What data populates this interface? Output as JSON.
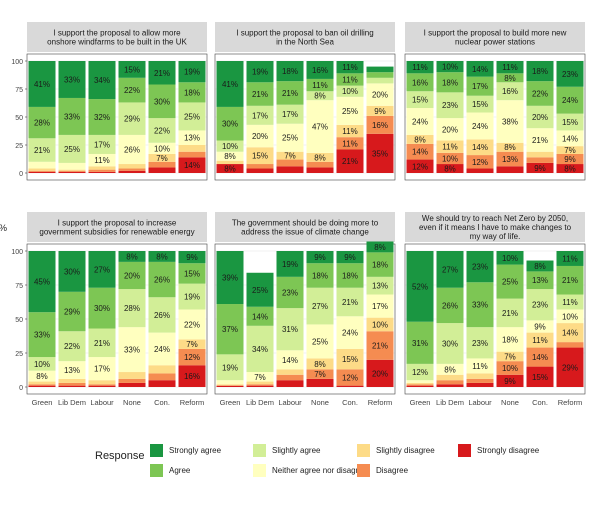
{
  "chart_data": {
    "type": "bar",
    "stacked": true,
    "ylabel": "%",
    "y_ticks": [
      0,
      25,
      50,
      75,
      100
    ],
    "ylim": [
      0,
      100
    ],
    "categories": [
      "Green",
      "Lib Dem",
      "Labour",
      "None",
      "Con.",
      "Reform"
    ],
    "legend_title": "Response",
    "legend_position": "bottom",
    "responses": [
      {
        "name": "Strongly agree",
        "color": "#1a9641"
      },
      {
        "name": "Agree",
        "color": "#7dc654"
      },
      {
        "name": "Slightly agree",
        "color": "#d2ee97"
      },
      {
        "name": "Neither agree nor disagree",
        "color": "#ffffbf"
      },
      {
        "name": "Slightly disagree",
        "color": "#fddb87"
      },
      {
        "name": "Disagree",
        "color": "#f58c51"
      },
      {
        "name": "Strongly disagree",
        "color": "#d7191c"
      }
    ],
    "panels": [
      {
        "title": "I support the proposal to allow more onshore windfarms to be built in the UK",
        "bars": [
          [
            41,
            28,
            21,
            6,
            2,
            1,
            1
          ],
          [
            33,
            33,
            25,
            6,
            1,
            1,
            1
          ],
          [
            34,
            32,
            17,
            11,
            3,
            2,
            1
          ],
          [
            15,
            22,
            29,
            26,
            4,
            2,
            2
          ],
          [
            21,
            30,
            22,
            10,
            7,
            5,
            5
          ],
          [
            19,
            18,
            25,
            13,
            6,
            5,
            14
          ]
        ]
      },
      {
        "title": "I support the proposal to ban oil drilling in the North Sea",
        "bars": [
          [
            41,
            30,
            10,
            8,
            3,
            0,
            8
          ],
          [
            19,
            21,
            17,
            20,
            15,
            4,
            4
          ],
          [
            18,
            21,
            17,
            25,
            7,
            6,
            6
          ],
          [
            16,
            11,
            8,
            47,
            8,
            5,
            5
          ],
          [
            11,
            11,
            10,
            25,
            11,
            11,
            21
          ],
          [
            5,
            5,
            5,
            20,
            9,
            16,
            35
          ]
        ]
      },
      {
        "title": "I support the proposal to build more new nuclear power stations",
        "bars": [
          [
            11,
            16,
            15,
            24,
            8,
            14,
            12
          ],
          [
            10,
            18,
            23,
            20,
            11,
            10,
            8
          ],
          [
            14,
            17,
            15,
            24,
            14,
            12,
            4
          ],
          [
            11,
            8,
            16,
            38,
            8,
            13,
            6
          ],
          [
            18,
            22,
            20,
            21,
            5,
            5,
            9
          ],
          [
            23,
            24,
            15,
            14,
            7,
            9,
            8
          ]
        ]
      },
      {
        "title": "I support the proposal to increase government subsidies for renewable energy",
        "bars": [
          [
            45,
            33,
            10,
            8,
            2,
            1,
            1
          ],
          [
            30,
            29,
            22,
            13,
            3,
            2,
            1
          ],
          [
            27,
            30,
            21,
            17,
            3,
            1,
            1
          ],
          [
            8,
            20,
            28,
            33,
            5,
            3,
            3
          ],
          [
            8,
            26,
            26,
            24,
            6,
            5,
            5
          ],
          [
            9,
            15,
            19,
            22,
            7,
            12,
            16
          ]
        ]
      },
      {
        "title": "The government should be doing more to address the issue of climate change",
        "bars": [
          [
            39,
            37,
            19,
            3,
            1,
            0,
            1
          ],
          [
            25,
            14,
            34,
            7,
            2,
            1,
            1
          ],
          [
            19,
            23,
            31,
            14,
            4,
            4,
            5
          ],
          [
            9,
            18,
            27,
            25,
            8,
            7,
            6
          ],
          [
            9,
            18,
            21,
            24,
            15,
            12,
            1
          ],
          [
            8,
            18,
            13,
            17,
            10,
            21,
            20
          ]
        ]
      },
      {
        "title": "We should try to reach Net Zero by 2050, even if it means I have to make changes to my way of life.",
        "bars": [
          [
            52,
            31,
            12,
            2,
            1,
            1,
            1
          ],
          [
            27,
            26,
            30,
            8,
            4,
            3,
            2
          ],
          [
            23,
            33,
            23,
            11,
            4,
            3,
            3
          ],
          [
            10,
            25,
            21,
            18,
            7,
            10,
            9
          ],
          [
            8,
            13,
            23,
            9,
            11,
            14,
            15
          ],
          [
            11,
            21,
            11,
            10,
            14,
            4,
            29
          ]
        ]
      }
    ]
  }
}
